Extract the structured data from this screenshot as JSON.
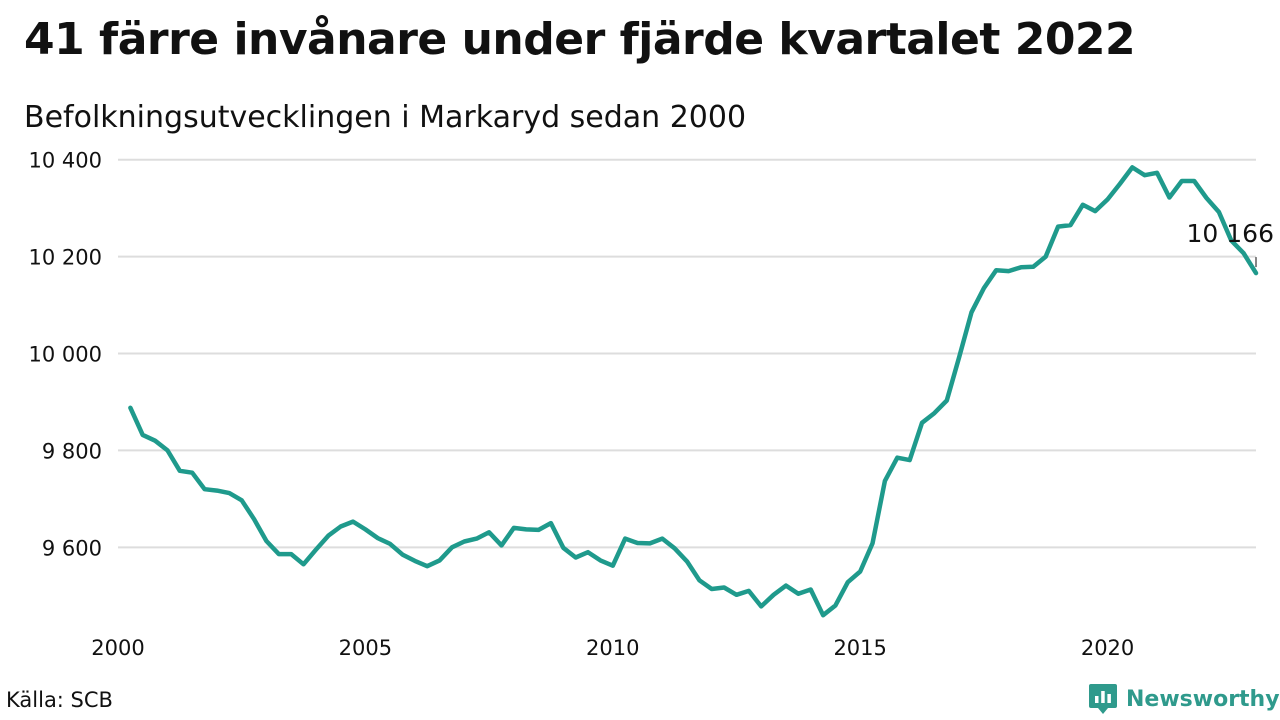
{
  "title": "41 färre invånare under fjärde kvartalet 2022",
  "subtitle": "Befolkningsutvecklingen i Markaryd sedan 2000",
  "source": "Källa: SCB",
  "brand": {
    "name": "Newsworthy",
    "icon": "newsworthy-logo-icon"
  },
  "colors": {
    "line": "#1f9a8c",
    "grid": "#dddddd",
    "text": "#111111",
    "brand": "#2f9a8c"
  },
  "chart_data": {
    "type": "line",
    "title": "41 färre invånare under fjärde kvartalet 2022",
    "subtitle": "Befolkningsutvecklingen i Markaryd sedan 2000",
    "xlim": [
      2000,
      2023
    ],
    "ylim": [
      9450,
      10420
    ],
    "grid": true,
    "xticks": [
      {
        "value": 2000,
        "label": "2000"
      },
      {
        "value": 2005,
        "label": "2005"
      },
      {
        "value": 2010,
        "label": "2010"
      },
      {
        "value": 2015,
        "label": "2015"
      },
      {
        "value": 2020,
        "label": "2020"
      }
    ],
    "yticks": [
      {
        "value": 9600,
        "label": "9 600"
      },
      {
        "value": 9800,
        "label": "9 800"
      },
      {
        "value": 10000,
        "label": "10 000"
      },
      {
        "value": 10200,
        "label": "10 200"
      },
      {
        "value": 10400,
        "label": "10 400"
      }
    ],
    "series": [
      {
        "x": [
          2000.25,
          2000.5,
          2000.75,
          2001.0,
          2001.25,
          2001.5,
          2001.75,
          2002.0,
          2002.25,
          2002.5,
          2002.75,
          2003.0,
          2003.25,
          2003.5,
          2003.75,
          2004.0,
          2004.25,
          2004.5,
          2004.75,
          2005.0,
          2005.25,
          2005.5,
          2005.75,
          2006.0,
          2006.25,
          2006.5,
          2006.75,
          2007.0,
          2007.25,
          2007.5,
          2007.75,
          2008.0,
          2008.25,
          2008.5,
          2008.75,
          2009.0,
          2009.25,
          2009.5,
          2009.75,
          2010.0,
          2010.25,
          2010.5,
          2010.75,
          2011.0,
          2011.25,
          2011.5,
          2011.75,
          2012.0,
          2012.25,
          2012.5,
          2012.75,
          2013.0,
          2013.25,
          2013.5,
          2013.75,
          2014.0,
          2014.25,
          2014.5,
          2014.75,
          2015.0,
          2015.25,
          2015.5,
          2015.75,
          2016.0,
          2016.25,
          2016.5,
          2016.75,
          2017.0,
          2017.25,
          2017.5,
          2017.75,
          2018.0,
          2018.25,
          2018.5,
          2018.75,
          2019.0,
          2019.25,
          2019.5,
          2019.75,
          2020.0,
          2020.25,
          2020.5,
          2020.75,
          2021.0,
          2021.25,
          2021.5,
          2021.75,
          2022.0,
          2022.25,
          2022.5,
          2022.75,
          2023.0
        ],
        "values": [
          9888,
          9832,
          9820,
          9800,
          9758,
          9754,
          9720,
          9717,
          9712,
          9697,
          9658,
          9613,
          9586,
          9586,
          9565,
          9595,
          9624,
          9643,
          9653,
          9637,
          9619,
          9607,
          9585,
          9572,
          9561,
          9573,
          9600,
          9612,
          9618,
          9631,
          9604,
          9640,
          9637,
          9636,
          9650,
          9599,
          9579,
          9590,
          9573,
          9562,
          9618,
          9609,
          9608,
          9618,
          9598,
          9571,
          9532,
          9514,
          9517,
          9502,
          9510,
          9478,
          9502,
          9521,
          9504,
          9513,
          9460,
          9480,
          9528,
          9550,
          9608,
          9737,
          9785,
          9780,
          9857,
          9877,
          9903,
          9992,
          10085,
          10135,
          10172,
          10170,
          10178,
          10179,
          10200,
          10262,
          10265,
          10307,
          10294,
          10318,
          10350,
          10384,
          10368,
          10373,
          10322,
          10356,
          10356,
          10321,
          10292,
          10233,
          10207,
          10166
        ]
      }
    ],
    "annotations": [
      {
        "x": 2023.0,
        "y": 10166,
        "label": "10 166"
      }
    ]
  }
}
